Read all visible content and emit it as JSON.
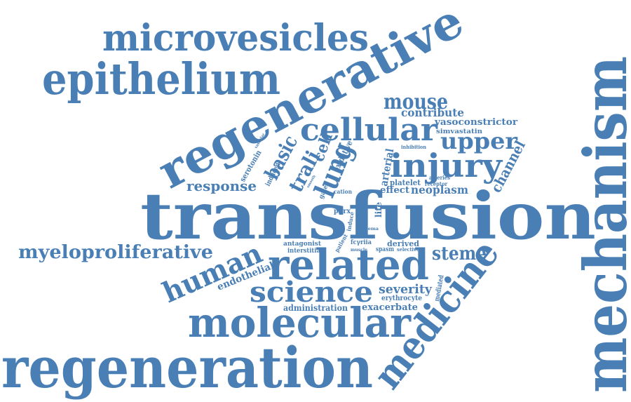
{
  "color": "#4a7fb5",
  "words": {
    "transfusion": "transfusion",
    "regeneration": "regeneration",
    "mechanism": "mechanism",
    "regenerative": "regenerative",
    "epithelium": "epithelium",
    "microvesicles": "microvesicles",
    "molecular": "molecular",
    "related": "related",
    "medicine": "medicine",
    "cellular": "cellular",
    "injury": "injury",
    "science": "science",
    "human": "human",
    "myeloproliferative": "myeloproliferative",
    "lung": "lung",
    "upper": "upper",
    "mouse": "mouse",
    "steme": "steme",
    "basic": "basic",
    "trali": "trali",
    "cell": "cell",
    "response": "response",
    "channel": "channel",
    "neoplasm": "neoplasm",
    "severity": "severity",
    "exacerbate": "exacerbate",
    "contribute": "contribute",
    "vasoconstrictor": "vasoconstrictor",
    "simvastatin": "simvastatin",
    "administration": "administration",
    "endothelial": "endothelial",
    "oxidative": "oxidative",
    "arterial": "arterial",
    "derived": "derived",
    "effect": "effect",
    "platelet": "platelet",
    "life": "life",
    "antagonist": "antagonist",
    "interstitial": "interstitial",
    "erythrocyte": "erythrocyte",
    "mediated": "mediated",
    "serotonin": "serotonin",
    "vascular": "vascular",
    "induced": "induced",
    "gated": "gated",
    "cation": "cation",
    "p2rx": "p2rx",
    "induce": "induce",
    "edema": "edema",
    "patient": "patient",
    "fcyriia": "fcγriia",
    "muscle": "muscle",
    "spasm": "spasm",
    "selective": "selective",
    "arteries": "arteries",
    "receptor": "receptor",
    "inhibition": "inhibition",
    "smooth": "smooth"
  }
}
